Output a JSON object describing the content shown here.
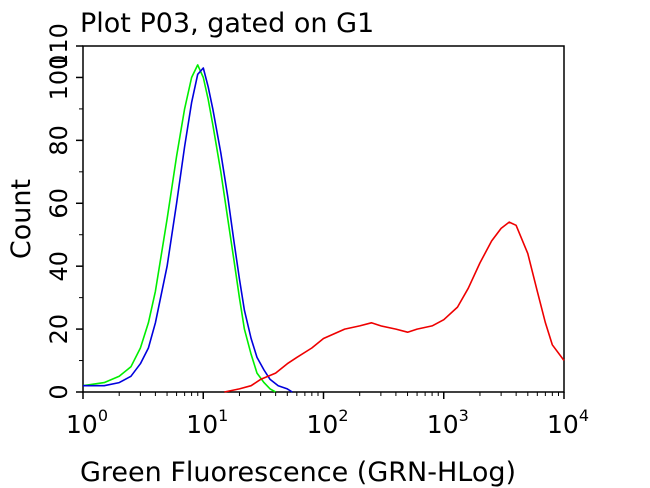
{
  "chart_data": {
    "type": "line",
    "title": "Plot P03, gated on G1",
    "xlabel": "Green Fluorescence (GRN-HLog)",
    "ylabel": "Count",
    "x_scale": "log",
    "xlim": [
      1,
      10000
    ],
    "ylim": [
      0,
      110
    ],
    "x_ticks": [
      {
        "base": "10",
        "exp": "0",
        "value": 1
      },
      {
        "base": "10",
        "exp": "1",
        "value": 10
      },
      {
        "base": "10",
        "exp": "2",
        "value": 100
      },
      {
        "base": "10",
        "exp": "3",
        "value": 1000
      },
      {
        "base": "10",
        "exp": "4",
        "value": 10000
      }
    ],
    "y_ticks": [
      "0",
      "20",
      "40",
      "60",
      "80",
      "100",
      "110"
    ],
    "y_tick_values": [
      0,
      20,
      40,
      60,
      80,
      100,
      110
    ],
    "grid": false,
    "series": [
      {
        "color": "#00ee00",
        "x": [
          1,
          1.5,
          2,
          2.5,
          3,
          3.5,
          4,
          5,
          6,
          7,
          8,
          9,
          10,
          11,
          12,
          14,
          16,
          18,
          20,
          22,
          25,
          28,
          32,
          36,
          40
        ],
        "y": [
          2,
          3,
          5,
          8,
          14,
          22,
          32,
          55,
          75,
          90,
          100,
          104,
          100,
          93,
          85,
          70,
          55,
          42,
          30,
          20,
          12,
          6,
          3,
          1,
          0
        ]
      },
      {
        "color": "#0000dd",
        "x": [
          1,
          1.5,
          2,
          2.5,
          3,
          3.5,
          4,
          5,
          6,
          7,
          8,
          9,
          10,
          11,
          12,
          14,
          16,
          18,
          20,
          22,
          25,
          28,
          32,
          36,
          42,
          50,
          55
        ],
        "y": [
          2,
          2,
          3,
          5,
          9,
          14,
          22,
          40,
          60,
          78,
          92,
          101,
          103,
          97,
          90,
          76,
          62,
          48,
          36,
          26,
          17,
          11,
          7,
          4,
          2,
          1,
          0
        ]
      },
      {
        "color": "#ee0000",
        "x": [
          15,
          20,
          25,
          30,
          40,
          50,
          60,
          80,
          100,
          150,
          200,
          250,
          300,
          400,
          500,
          600,
          800,
          1000,
          1300,
          1600,
          2000,
          2500,
          3000,
          3500,
          4000,
          5000,
          6000,
          7000,
          8000,
          10000
        ],
        "y": [
          0,
          1,
          2,
          4,
          6,
          9,
          11,
          14,
          17,
          20,
          21,
          22,
          21,
          20,
          19,
          20,
          21,
          23,
          27,
          33,
          41,
          48,
          52,
          54,
          53,
          44,
          32,
          22,
          15,
          10
        ]
      }
    ]
  }
}
